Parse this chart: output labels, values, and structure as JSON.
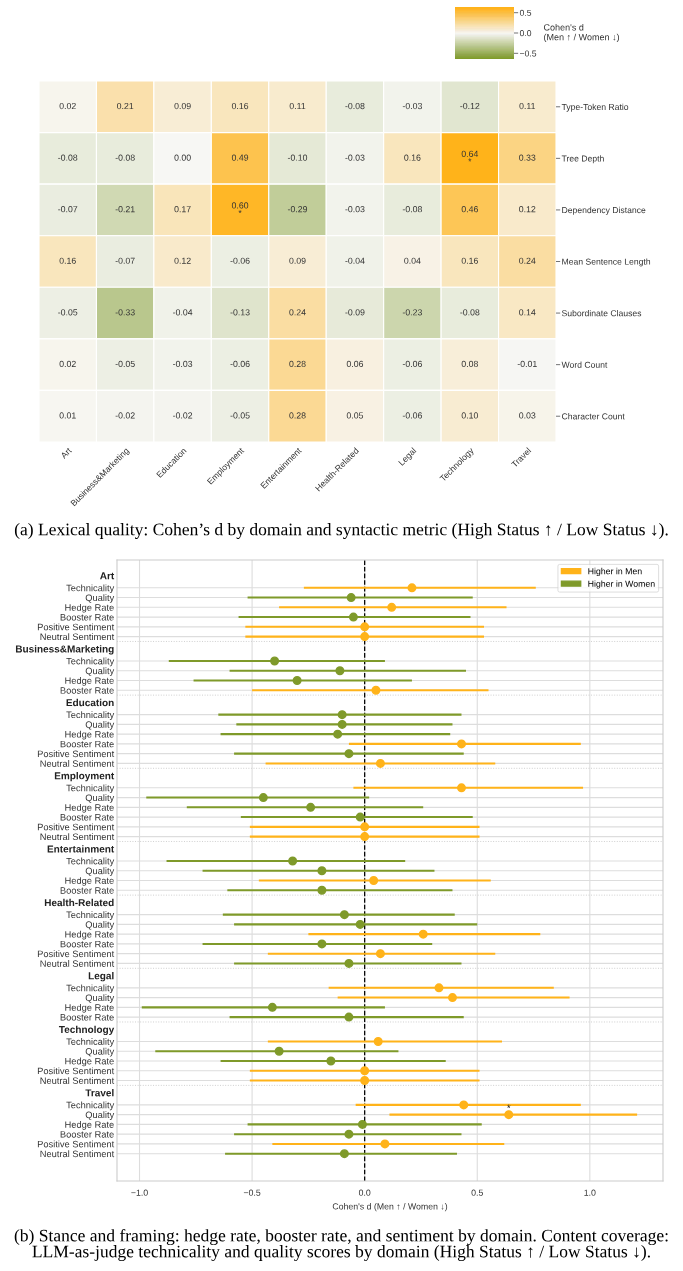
{
  "chart_data": [
    {
      "type": "heatmap",
      "categories": [
        "Art",
        "Business&Marketing",
        "Education",
        "Employment",
        "Entertainment",
        "Health-Related",
        "Legal",
        "Technology",
        "Travel"
      ],
      "y_categories": [
        "Type-Token Ratio",
        "Tree Depth",
        "Dependency Distance",
        "Mean Sentence Length",
        "Subordinate Clauses",
        "Word Count",
        "Character Count"
      ],
      "cells": [
        [
          0.02,
          0.21,
          0.09,
          0.16,
          0.11,
          -0.08,
          -0.03,
          -0.12,
          0.11
        ],
        [
          -0.08,
          -0.08,
          0.0,
          0.49,
          -0.1,
          -0.03,
          0.16,
          0.64,
          0.33
        ],
        [
          -0.07,
          -0.21,
          0.17,
          0.6,
          -0.29,
          -0.03,
          -0.08,
          0.46,
          0.12
        ],
        [
          0.16,
          -0.07,
          0.12,
          -0.06,
          0.09,
          -0.04,
          0.04,
          0.16,
          0.24
        ],
        [
          -0.05,
          -0.33,
          -0.04,
          -0.13,
          0.24,
          -0.09,
          -0.23,
          -0.08,
          0.14
        ],
        [
          0.02,
          -0.05,
          -0.03,
          -0.06,
          0.28,
          0.06,
          -0.06,
          0.08,
          -0.01
        ],
        [
          0.01,
          -0.02,
          -0.02,
          -0.05,
          0.28,
          0.05,
          -0.06,
          0.1,
          0.03
        ]
      ],
      "cell_labels": [
        [
          "0.02",
          "0.21",
          "0.09",
          "0.16",
          "0.11",
          "-0.08",
          "-0.03",
          "-0.12",
          "0.11"
        ],
        [
          "-0.08",
          "-0.08",
          "0.00",
          "0.49",
          "-0.10",
          "-0.03",
          "0.16",
          "0.64\n*",
          "0.33"
        ],
        [
          "-0.07",
          "-0.21",
          "0.17",
          "0.60\n*",
          "-0.29",
          "-0.03",
          "-0.08",
          "0.46",
          "0.12"
        ],
        [
          "0.16",
          "-0.07",
          "0.12",
          "-0.06",
          "0.09",
          "-0.04",
          "0.04",
          "0.16",
          "0.24"
        ],
        [
          "-0.05",
          "-0.33",
          "-0.04",
          "-0.13",
          "0.24",
          "-0.09",
          "-0.23",
          "-0.08",
          "0.14"
        ],
        [
          "0.02",
          "-0.05",
          "-0.03",
          "-0.06",
          "0.28",
          "0.06",
          "-0.06",
          "0.08",
          "-0.01"
        ],
        [
          "0.01",
          "-0.02",
          "-0.02",
          "-0.05",
          "0.28",
          "0.05",
          "-0.06",
          "0.10",
          "0.03"
        ]
      ],
      "clim": [
        -0.64,
        0.64
      ],
      "cticks": [
        {
          "value": -0.5,
          "label": "−0.5"
        },
        {
          "value": 0.0,
          "label": "0.0"
        },
        {
          "value": 0.5,
          "label": "0.5"
        }
      ],
      "clabel": "Cohen's d\n(Men ↑ / Women ↓)",
      "annotations": [
        "(a) Lexical quality: Cohen’s d by domain and syntactic metric (High Status ↑ / Low Status ↓)."
      ]
    },
    {
      "type": "scatter",
      "orientation": "horizontal",
      "marker": "circle",
      "grid": true,
      "legend": "top right",
      "categories": [
        "Art",
        "Technicality",
        "Quality",
        "Hedge Rate",
        "Booster Rate",
        "Positive Sentiment",
        "Neutral Sentiment",
        "Business&Marketing",
        "Technicality",
        "Quality",
        "Hedge Rate",
        "Booster Rate",
        "Education",
        "Technicality",
        "Quality",
        "Hedge Rate",
        "Booster Rate",
        "Positive Sentiment",
        "Neutral Sentiment",
        "Employment",
        "Technicality",
        "Quality",
        "Hedge Rate",
        "Booster Rate",
        "Positive Sentiment",
        "Neutral Sentiment",
        "Entertainment",
        "Technicality",
        "Quality",
        "Hedge Rate",
        "Booster Rate",
        "Health-Related",
        "Technicality",
        "Quality",
        "Hedge Rate",
        "Booster Rate",
        "Positive Sentiment",
        "Neutral Sentiment",
        "Legal",
        "Technicality",
        "Quality",
        "Hedge Rate",
        "Booster Rate",
        "Technology",
        "Technicality",
        "Quality",
        "Hedge Rate",
        "Positive Sentiment",
        "Neutral Sentiment",
        "Travel",
        "Technicality",
        "Quality",
        "Hedge Rate",
        "Booster Rate",
        "Positive Sentiment",
        "Neutral Sentiment"
      ],
      "series": [
        {
          "name": "Higher in Men",
          "color": "#ffb31a",
          "values": [
            null,
            0.21,
            null,
            0.12,
            null,
            0.0,
            0.0,
            null,
            null,
            null,
            null,
            0.05,
            null,
            null,
            null,
            null,
            0.43,
            null,
            0.07,
            null,
            0.43,
            null,
            null,
            null,
            0.0,
            0.0,
            null,
            null,
            null,
            0.04,
            null,
            null,
            null,
            null,
            0.26,
            null,
            0.07,
            null,
            null,
            0.33,
            0.39,
            null,
            null,
            null,
            0.06,
            null,
            null,
            0.0,
            0.0,
            null,
            0.44,
            0.64,
            null,
            null,
            0.09,
            null
          ],
          "errors": [
            null,
            [
              -0.27,
              0.76
            ],
            null,
            [
              -0.38,
              0.63
            ],
            null,
            [
              -0.53,
              0.53
            ],
            [
              -0.53,
              0.53
            ],
            null,
            null,
            null,
            null,
            [
              -0.5,
              0.55
            ],
            null,
            null,
            null,
            null,
            [
              -0.07,
              0.96
            ],
            null,
            [
              -0.44,
              0.58
            ],
            null,
            [
              -0.05,
              0.97
            ],
            null,
            null,
            null,
            [
              -0.51,
              0.51
            ],
            [
              -0.51,
              0.51
            ],
            null,
            null,
            null,
            [
              -0.47,
              0.56
            ],
            null,
            null,
            null,
            null,
            [
              -0.25,
              0.78
            ],
            null,
            [
              -0.43,
              0.58
            ],
            null,
            null,
            [
              -0.16,
              0.84
            ],
            [
              -0.12,
              0.91
            ],
            null,
            null,
            null,
            [
              -0.43,
              0.61
            ],
            null,
            null,
            [
              -0.51,
              0.51
            ],
            [
              -0.51,
              0.51
            ],
            null,
            [
              -0.04,
              0.96
            ],
            [
              0.11,
              1.21
            ],
            null,
            null,
            [
              -0.41,
              0.62
            ],
            null
          ],
          "value_labels": [
            null,
            null,
            null,
            null,
            null,
            null,
            null,
            null,
            null,
            null,
            null,
            null,
            null,
            null,
            null,
            null,
            null,
            null,
            null,
            null,
            null,
            null,
            null,
            null,
            null,
            null,
            null,
            null,
            null,
            null,
            null,
            null,
            null,
            null,
            null,
            null,
            null,
            null,
            null,
            null,
            null,
            null,
            null,
            null,
            null,
            null,
            null,
            null,
            null,
            null,
            null,
            "*",
            null,
            null,
            null,
            null
          ]
        },
        {
          "name": "Higher in Women",
          "color": "#7f9a2a",
          "values": [
            null,
            null,
            -0.06,
            null,
            -0.05,
            null,
            null,
            null,
            -0.4,
            -0.11,
            -0.3,
            null,
            null,
            -0.1,
            -0.1,
            -0.12,
            null,
            -0.07,
            null,
            null,
            null,
            -0.45,
            -0.24,
            -0.02,
            null,
            null,
            null,
            -0.32,
            -0.19,
            null,
            -0.19,
            null,
            -0.09,
            -0.02,
            null,
            -0.19,
            null,
            -0.07,
            null,
            null,
            null,
            -0.41,
            -0.07,
            null,
            null,
            -0.38,
            -0.15,
            null,
            null,
            null,
            null,
            null,
            -0.01,
            -0.07,
            null,
            -0.09
          ],
          "errors": [
            null,
            null,
            [
              -0.52,
              0.48
            ],
            null,
            [
              -0.56,
              0.47
            ],
            null,
            null,
            null,
            [
              -0.87,
              0.09
            ],
            [
              -0.6,
              0.45
            ],
            [
              -0.76,
              0.21
            ],
            null,
            null,
            [
              -0.65,
              0.43
            ],
            [
              -0.57,
              0.39
            ],
            [
              -0.64,
              0.38
            ],
            null,
            [
              -0.58,
              0.44
            ],
            null,
            null,
            null,
            [
              -0.97,
              0.02
            ],
            [
              -0.79,
              0.26
            ],
            [
              -0.55,
              0.48
            ],
            null,
            null,
            null,
            [
              -0.88,
              0.18
            ],
            [
              -0.72,
              0.31
            ],
            null,
            [
              -0.61,
              0.39
            ],
            null,
            [
              -0.63,
              0.4
            ],
            [
              -0.58,
              0.5
            ],
            null,
            [
              -0.72,
              0.3
            ],
            null,
            [
              -0.58,
              0.43
            ],
            null,
            null,
            null,
            [
              -0.99,
              0.09
            ],
            [
              -0.6,
              0.44
            ],
            null,
            null,
            [
              -0.93,
              0.15
            ],
            [
              -0.64,
              0.36
            ],
            null,
            null,
            null,
            null,
            null,
            [
              -0.52,
              0.52
            ],
            [
              -0.58,
              0.43
            ],
            null,
            [
              -0.62,
              0.41
            ]
          ]
        }
      ],
      "xlim": [
        -1.1,
        1.325
      ],
      "xticks": [
        {
          "value": -1.0,
          "label": "−1.0"
        },
        {
          "value": -0.5,
          "label": "−0.5"
        },
        {
          "value": 0.0,
          "label": "0.0"
        },
        {
          "value": 0.5,
          "label": "0.5"
        },
        {
          "value": 1.0,
          "label": "1.0"
        }
      ],
      "xlabel": "Cohen's d (Men ↑ / Women ↓)",
      "ref_lines": [
        {
          "axis": "x",
          "value": 0,
          "color": "#000000",
          "line_style": "dashed"
        }
      ],
      "annotations": [
        "(b) Stance and framing: hedge rate, booster rate, and sentiment by domain. Content coverage: LLM-as-judge technicality and quality scores by domain (High Status ↑ / Low Status ↓)."
      ]
    }
  ]
}
